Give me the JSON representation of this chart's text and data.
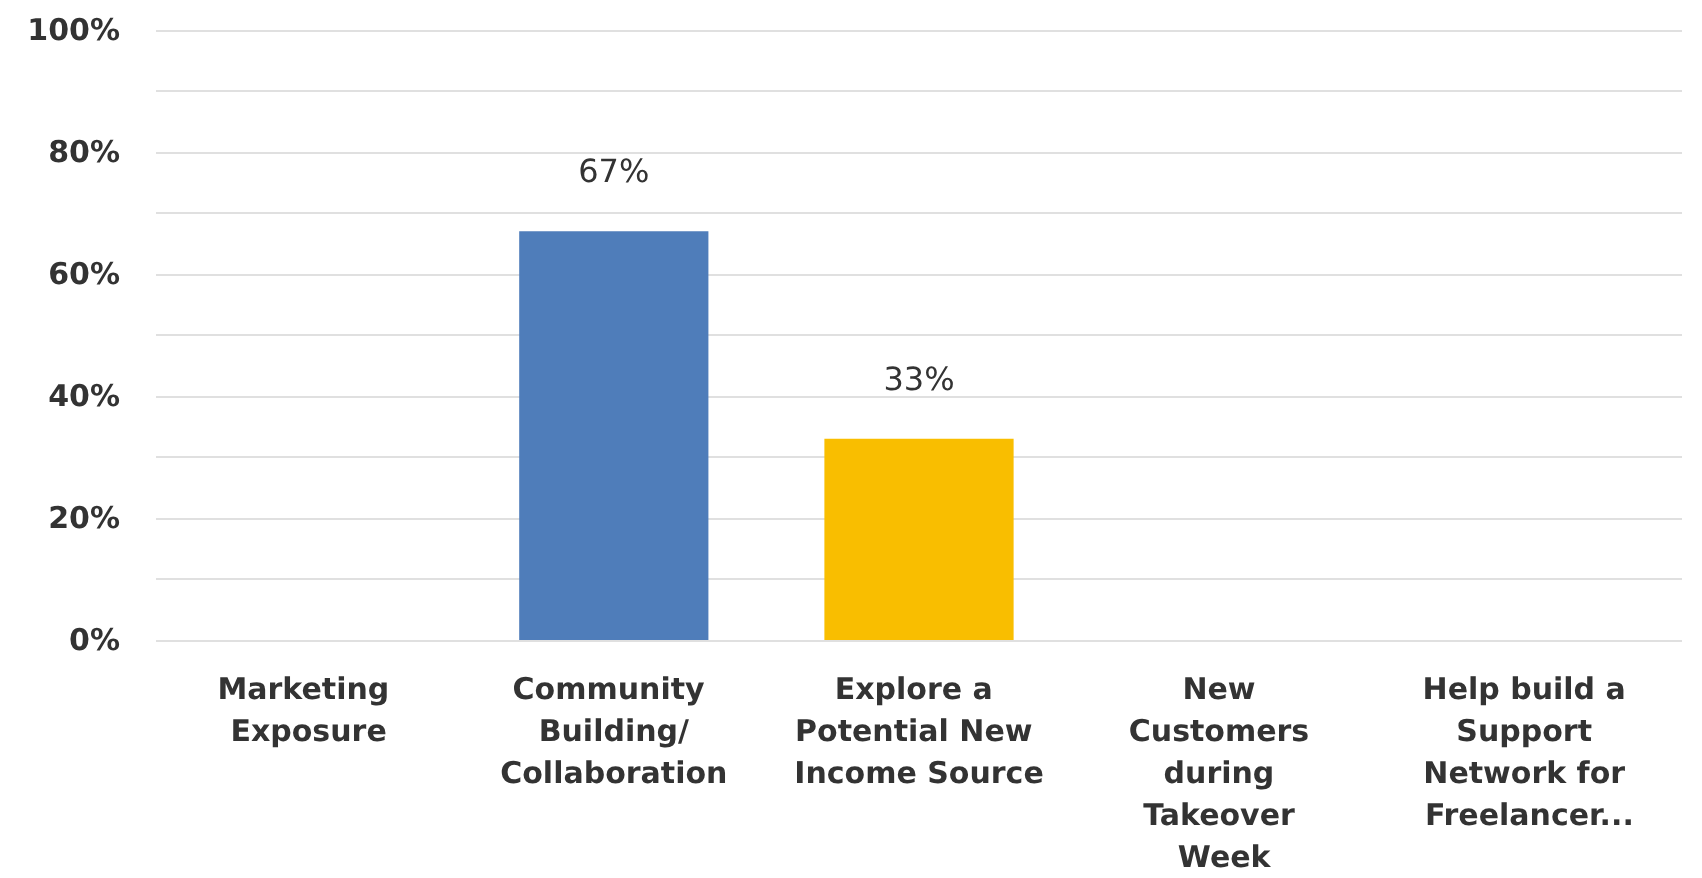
{
  "chart_data": {
    "type": "bar",
    "categories": [
      "Marketing Exposure",
      "Community Building/Collaboration",
      "Explore a Potential New Income Source",
      "New Customers during Takeover Week",
      "Help build a Support Network for Freelancer..."
    ],
    "values": [
      0,
      67,
      33,
      0,
      0
    ],
    "colors": [
      "#4f7dba",
      "#4f7dba",
      "#f9be00",
      "#4f7dba",
      "#4f7dba"
    ],
    "value_labels": [
      null,
      "67%",
      "33%",
      null,
      null
    ],
    "ylim": [
      0,
      100
    ],
    "yticks": [
      {
        "value": 0,
        "label": "0%"
      },
      {
        "value": 10,
        "label": null
      },
      {
        "value": 20,
        "label": "20%"
      },
      {
        "value": 30,
        "label": null
      },
      {
        "value": 40,
        "label": "40%"
      },
      {
        "value": 50,
        "label": null
      },
      {
        "value": 60,
        "label": "60%"
      },
      {
        "value": 70,
        "label": null
      },
      {
        "value": 80,
        "label": "80%"
      },
      {
        "value": 90,
        "label": null
      },
      {
        "value": 100,
        "label": "100%"
      }
    ],
    "grid": true
  }
}
